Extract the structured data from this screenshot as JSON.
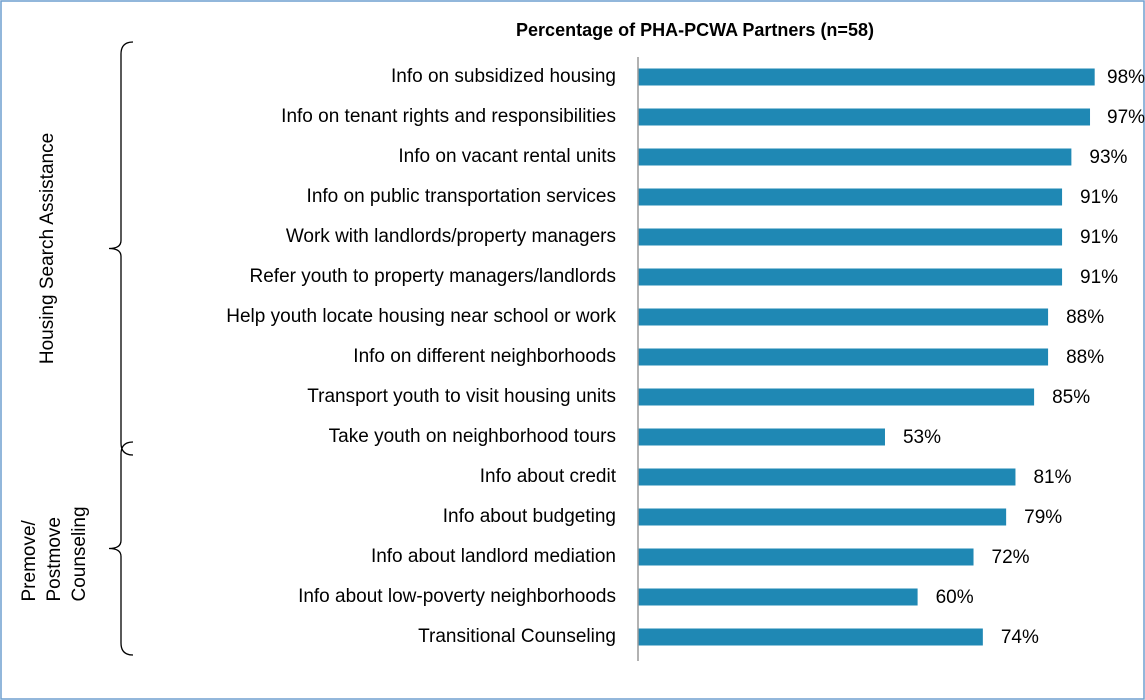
{
  "chart_data": {
    "type": "bar",
    "orientation": "horizontal",
    "title": "Percentage of PHA-PCWA Partners (n=58)",
    "color": "#1f88b4",
    "xlim": [
      0,
      100
    ],
    "groups": [
      {
        "name": [
          "Housing Search Assistance"
        ],
        "categories": [
          "Info on subsidized housing",
          "Info on tenant rights and responsibilities",
          "Info on vacant rental units",
          "Info on public transportation services",
          "Work with landlords/property managers",
          "Refer youth to property managers/landlords",
          "Help youth locate housing near school or work",
          "Info on different neighborhoods",
          "Transport youth to visit housing units",
          "Take youth on neighborhood tours"
        ],
        "values": [
          98,
          97,
          93,
          91,
          91,
          91,
          88,
          88,
          85,
          53
        ],
        "value_labels": [
          "98%",
          "97%",
          "93%",
          "91%",
          "91%",
          "91%",
          "88%",
          "88%",
          "85%",
          "53%"
        ]
      },
      {
        "name": [
          "Premove/",
          "Postmove",
          "Counseling"
        ],
        "categories": [
          "Info about credit",
          "Info about budgeting",
          "Info about landlord mediation",
          "Info about low-poverty neighborhoods",
          "Transitional Counseling"
        ],
        "values": [
          81,
          79,
          72,
          60,
          74
        ],
        "value_labels": [
          "81%",
          "79%",
          "72%",
          "60%",
          "74%"
        ]
      }
    ]
  }
}
